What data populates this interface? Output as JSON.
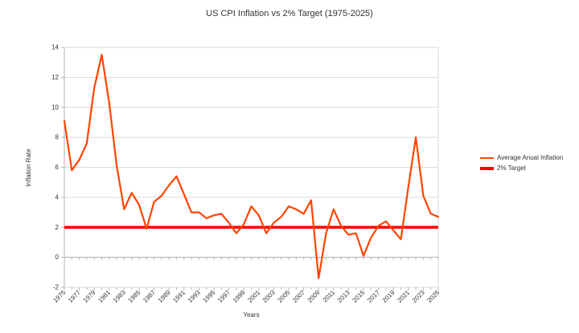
{
  "title": "US CPI Inflation vs 2% Target (1975-2025)",
  "colors": {
    "background": "#FFFFFF",
    "inflation_line": "#FF4500",
    "target_line": "#FF0000",
    "gridline": "#D9D9D9",
    "axis": "#B3B3B3",
    "text": "#333333"
  },
  "chart_data": {
    "type": "line",
    "title": "US CPI Inflation vs 2% Target (1975-2025)",
    "xlabel": "Years",
    "ylabel": "Inflation Rate",
    "ylim": [
      -2,
      14
    ],
    "yticks": [
      14,
      12,
      10,
      8,
      6,
      4,
      2,
      0,
      -2
    ],
    "xtick_label_every": 2,
    "grid": true,
    "legend_position": "right",
    "x": [
      1975,
      1976,
      1977,
      1978,
      1979,
      1980,
      1981,
      1982,
      1983,
      1984,
      1985,
      1986,
      1987,
      1988,
      1989,
      1990,
      1991,
      1992,
      1993,
      1994,
      1995,
      1996,
      1997,
      1998,
      1999,
      2000,
      2001,
      2002,
      2003,
      2004,
      2005,
      2006,
      2007,
      2008,
      2009,
      2010,
      2011,
      2012,
      2013,
      2014,
      2015,
      2016,
      2017,
      2018,
      2019,
      2020,
      2021,
      2022,
      2023,
      2024,
      2025
    ],
    "series": [
      {
        "name": "Average Anual Inflation",
        "color": "#FF4500",
        "width": 2.2,
        "values": [
          9.1,
          5.8,
          6.5,
          7.6,
          11.3,
          13.5,
          10.3,
          6.1,
          3.2,
          4.3,
          3.5,
          1.9,
          3.7,
          4.1,
          4.8,
          5.4,
          4.2,
          3.0,
          3.0,
          2.6,
          2.8,
          2.9,
          2.3,
          1.6,
          2.2,
          3.4,
          2.8,
          1.6,
          2.3,
          2.7,
          3.4,
          3.2,
          2.9,
          3.8,
          -1.4,
          1.6,
          3.2,
          2.1,
          1.5,
          1.6,
          0.1,
          1.3,
          2.1,
          2.4,
          1.8,
          1.2,
          4.7,
          8.0,
          4.1,
          2.9,
          2.7
        ]
      },
      {
        "name": "2% Target",
        "color": "#FF0000",
        "width": 3.5,
        "constant_value": 2
      }
    ]
  }
}
